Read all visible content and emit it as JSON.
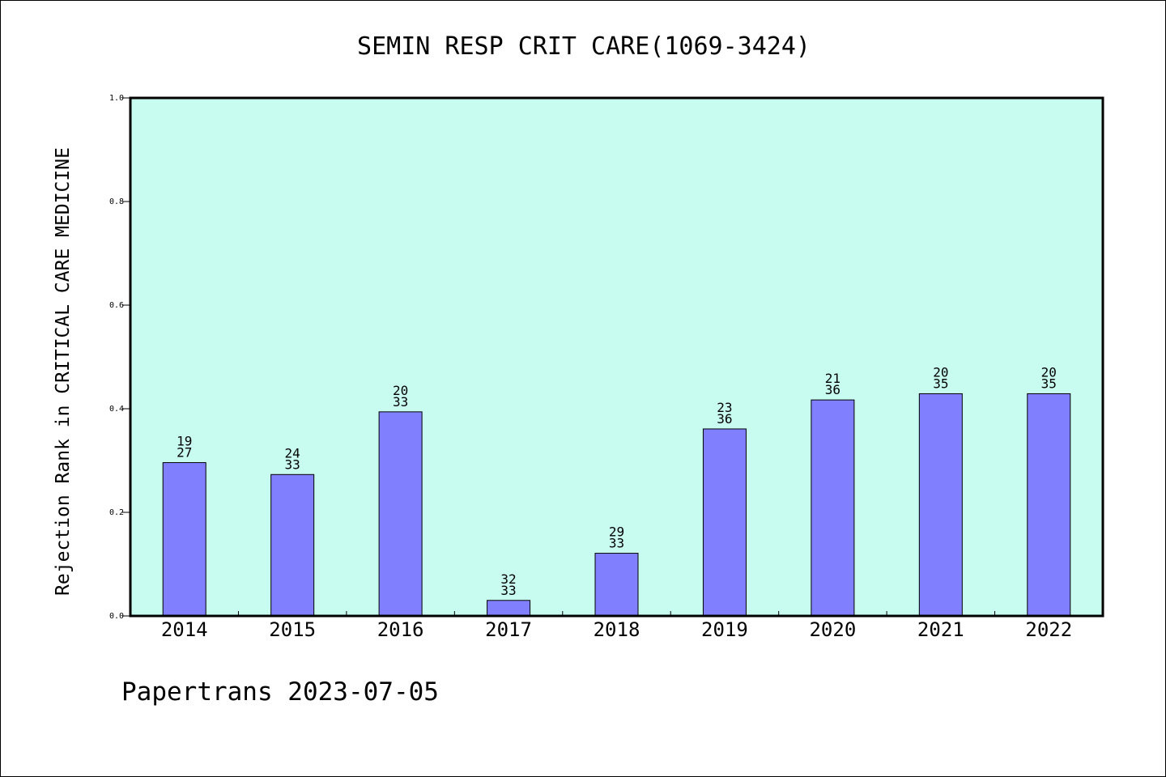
{
  "chart_data": {
    "type": "bar",
    "title": "SEMIN RESP CRIT CARE(1069-3424)",
    "ylabel": "Rejection Rank in CRITICAL CARE MEDICINE",
    "xlabel": "",
    "ylim": [
      0,
      1.0
    ],
    "yticks": [
      "0.0",
      "0.2",
      "0.4",
      "0.6",
      "0.8",
      "1.0"
    ],
    "categories": [
      "2014",
      "2015",
      "2016",
      "2017",
      "2018",
      "2019",
      "2020",
      "2021",
      "2022"
    ],
    "values": [
      0.296,
      0.273,
      0.394,
      0.03,
      0.121,
      0.361,
      0.417,
      0.429,
      0.429
    ],
    "rank_labels": [
      "19",
      "24",
      "20",
      "32",
      "29",
      "23",
      "21",
      "20",
      "20"
    ],
    "total_labels": [
      "27",
      "33",
      "33",
      "33",
      "33",
      "36",
      "36",
      "35",
      "35"
    ],
    "colors": {
      "plot_bg": "#c8fcf0",
      "bar": "#8080ff",
      "bar_edge": "#000000"
    },
    "grid": false,
    "legend": "none"
  },
  "footer": "Papertrans 2023-07-05"
}
